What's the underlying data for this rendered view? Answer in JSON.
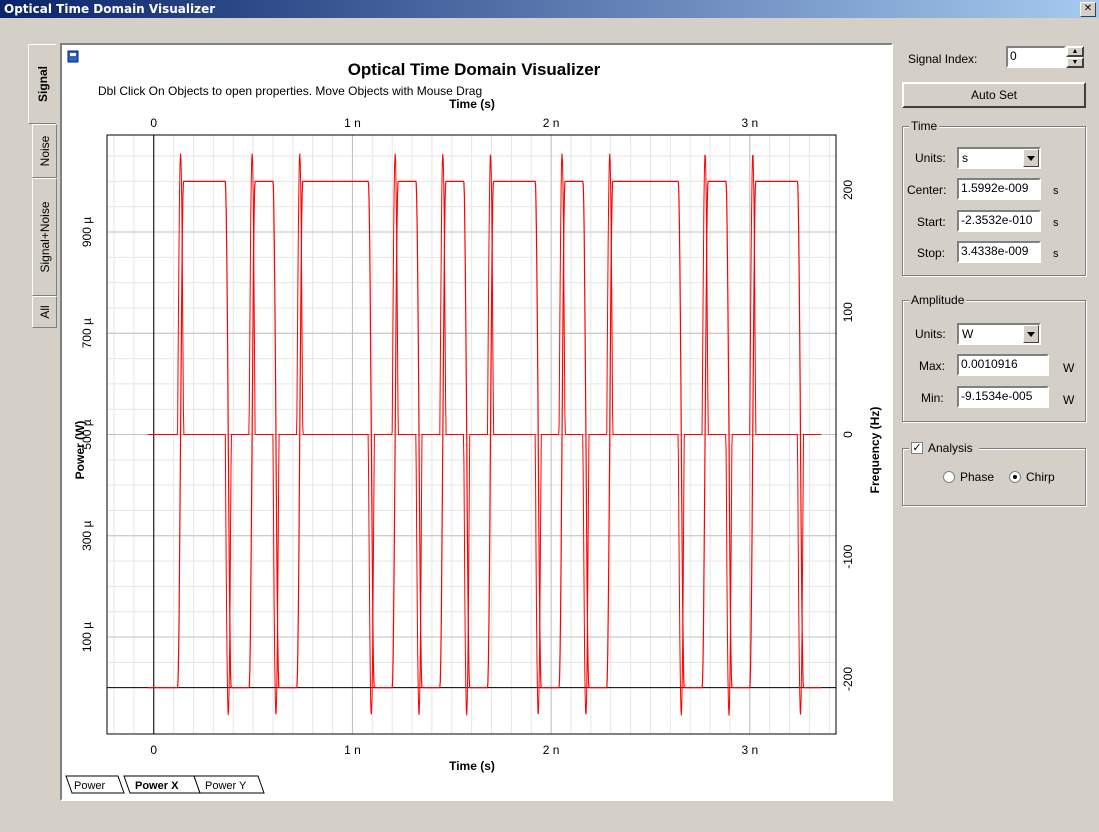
{
  "window": {
    "title": "Optical Time Domain Visualizer"
  },
  "left_tabs": [
    {
      "label": "Signal",
      "active": true
    },
    {
      "label": "Noise",
      "active": false
    },
    {
      "label": "Signal+Noise",
      "active": false
    },
    {
      "label": "All",
      "active": false
    }
  ],
  "plot": {
    "title": "Optical Time Domain Visualizer",
    "hint": "Dbl Click On Objects to open properties.  Move Objects with Mouse Drag",
    "top_axis_label": "Time (s)",
    "bottom_axis_label": "Time (s)",
    "left_axis_label": "Power (W)",
    "right_axis_label": "Frequency (Hz)"
  },
  "bottom_tabs": [
    {
      "label": "Power",
      "active": false
    },
    {
      "label": "Power X",
      "active": true
    },
    {
      "label": "Power Y",
      "active": false
    }
  ],
  "controls": {
    "signal_index_label": "Signal Index:",
    "signal_index_value": "0",
    "auto_set_label": "Auto Set",
    "time_group": "Time",
    "time_units_label": "Units:",
    "time_units_value": "s",
    "center_label": "Center:",
    "center_value": "1.5992e-009",
    "center_unit": "s",
    "start_label": "Start:",
    "start_value": "-2.3532e-010",
    "start_unit": "s",
    "stop_label": "Stop:",
    "stop_value": "3.4338e-009",
    "stop_unit": "s",
    "amplitude_group": "Amplitude",
    "amp_units_label": "Units:",
    "amp_units_value": "W",
    "max_label": "Max:",
    "max_value": "0.0010916",
    "max_unit": "W",
    "min_label": "Min:",
    "min_value": "-9.1534e-005",
    "min_unit": "W",
    "analysis_label": "Analysis",
    "analysis_checked": true,
    "phase_label": "Phase",
    "chirp_label": "Chirp",
    "selected_mode": "Chirp"
  },
  "chart_data": {
    "type": "line",
    "title": "Optical Time Domain Visualizer",
    "xlabel": "Time (s)",
    "ylabel": "Power (W)",
    "y2label": "Frequency (Hz)",
    "x_ticks": [
      "0",
      "1 n",
      "2 n",
      "3 n"
    ],
    "x_tick_values": [
      0,
      1e-09,
      2e-09,
      3e-09
    ],
    "xlim": [
      -2.3532e-10,
      3.4338e-09
    ],
    "y_ticks": [
      "100 µ",
      "300 µ",
      "500 µ",
      "700 µ",
      "900 µ"
    ],
    "y_tick_values": [
      0.0001,
      0.0003,
      0.0005,
      0.0007,
      0.0009
    ],
    "ylim": [
      -9.1534e-05,
      0.0010916
    ],
    "y2_ticks": [
      "-200",
      "-100",
      "0",
      "100",
      "200"
    ],
    "y2_tick_values": [
      -200,
      -100,
      0,
      100,
      200
    ],
    "y2lim": [
      -245,
      245
    ],
    "grid": true,
    "line_color": "#ff0000",
    "bits_1_2e-10_per_bit": [
      0,
      1,
      1,
      0,
      1,
      0,
      1,
      1,
      1,
      0,
      1,
      0,
      1,
      0,
      1,
      1,
      0,
      1,
      0,
      1,
      1,
      1,
      0,
      1,
      0,
      1,
      1,
      0
    ],
    "series": [
      {
        "axis": "left",
        "description_values": {
          "high": 0.001,
          "low": 0.0
        }
      },
      {
        "axis": "right",
        "description_values": {
          "baseline": 0,
          "spike_max": 230,
          "spike_min": -230
        }
      }
    ]
  }
}
